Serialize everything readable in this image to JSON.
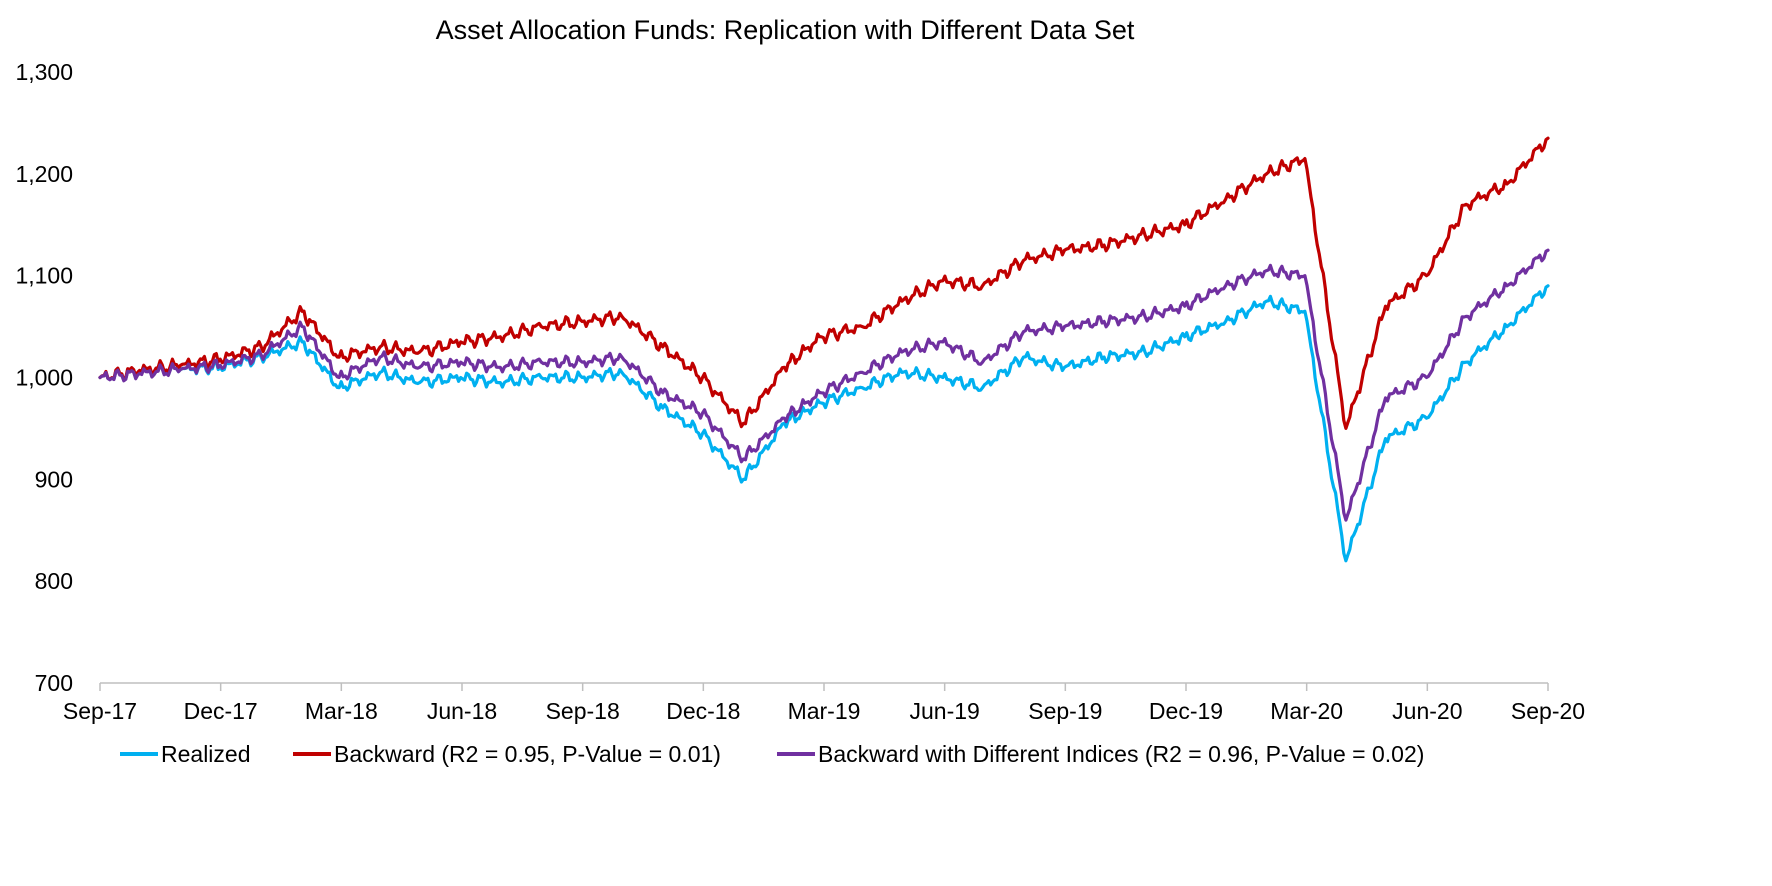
{
  "chart_data": {
    "type": "line",
    "title": "Asset Allocation Funds: Replication with Different Data Set",
    "xlabel": "",
    "ylabel": "",
    "ylim": [
      700,
      1300
    ],
    "yticks": [
      "700",
      "800",
      "900",
      "1,000",
      "1,100",
      "1,200",
      "1,300"
    ],
    "xticks": [
      "Sep-17",
      "Dec-17",
      "Mar-18",
      "Jun-18",
      "Sep-18",
      "Dec-18",
      "Mar-19",
      "Jun-19",
      "Sep-19",
      "Dec-19",
      "Mar-20",
      "Jun-20",
      "Sep-20"
    ],
    "grid": false,
    "legend_position": "bottom",
    "x": [
      "2017-09-01",
      "2017-10-01",
      "2017-11-01",
      "2017-12-01",
      "2018-01-01",
      "2018-02-01",
      "2018-03-01",
      "2018-04-01",
      "2018-05-01",
      "2018-06-01",
      "2018-07-01",
      "2018-08-01",
      "2018-09-01",
      "2018-10-01",
      "2018-11-01",
      "2018-12-01",
      "2019-01-01",
      "2019-02-01",
      "2019-03-01",
      "2019-04-01",
      "2019-05-01",
      "2019-06-01",
      "2019-07-01",
      "2019-08-01",
      "2019-09-01",
      "2019-10-01",
      "2019-11-01",
      "2019-12-01",
      "2020-01-01",
      "2020-02-01",
      "2020-03-01",
      "2020-04-01",
      "2020-05-01",
      "2020-06-01",
      "2020-07-01",
      "2020-08-01",
      "2020-09-01"
    ],
    "series": [
      {
        "name": "Realized",
        "color": "#00b0f0",
        "values": [
          1000,
          1005,
          1008,
          1010,
          1020,
          1035,
          990,
          1005,
          995,
          1000,
          995,
          1000,
          1000,
          1005,
          970,
          945,
          900,
          955,
          975,
          990,
          1005,
          1000,
          990,
          1020,
          1010,
          1020,
          1025,
          1040,
          1055,
          1075,
          1065,
          820,
          940,
          960,
          1015,
          1050,
          1090
        ]
      },
      {
        "name": "Backward (R2 = 0.95, P-Value = 0.01)",
        "color": "#c00000",
        "values": [
          1000,
          1007,
          1012,
          1018,
          1030,
          1065,
          1020,
          1030,
          1025,
          1035,
          1040,
          1050,
          1055,
          1060,
          1030,
          1000,
          955,
          1010,
          1040,
          1050,
          1075,
          1095,
          1090,
          1115,
          1125,
          1130,
          1140,
          1150,
          1175,
          1200,
          1215,
          950,
          1070,
          1100,
          1170,
          1190,
          1235
        ]
      },
      {
        "name": "Backward with Different Indices (R2 = 0.96, P-Value = 0.02)",
        "color": "#7030a0",
        "values": [
          1000,
          1004,
          1008,
          1012,
          1022,
          1050,
          1000,
          1020,
          1010,
          1015,
          1010,
          1015,
          1015,
          1020,
          985,
          965,
          920,
          960,
          985,
          1005,
          1025,
          1035,
          1015,
          1045,
          1050,
          1055,
          1060,
          1070,
          1090,
          1105,
          1100,
          860,
          980,
          1000,
          1060,
          1090,
          1125
        ]
      }
    ]
  }
}
